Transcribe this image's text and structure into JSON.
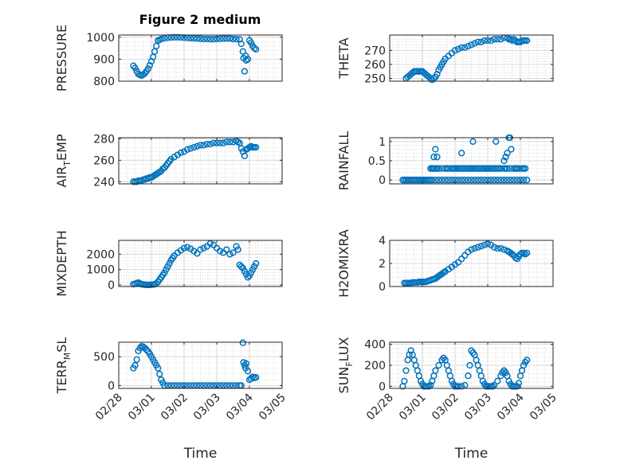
{
  "title": "Figure 2 medium",
  "marker_color": "#0072BD",
  "chart_data": [
    {
      "type": "scatter",
      "ylabel": "PRESSURE",
      "ylim": [
        800,
        1010
      ],
      "yticks": [
        800,
        900,
        1000
      ],
      "xlim": [
        "02/28",
        "03/05"
      ],
      "xticks": [
        "02/28",
        "03/01",
        "03/02",
        "03/03",
        "03/04",
        "03/05"
      ],
      "xtick_labels_visible": false,
      "x": [
        0.45,
        0.5,
        0.55,
        0.6,
        0.65,
        0.7,
        0.75,
        0.8,
        0.85,
        0.9,
        0.95,
        1.0,
        1.05,
        1.1,
        1.15,
        1.2,
        1.25,
        1.3,
        1.4,
        1.5,
        1.6,
        1.7,
        1.8,
        1.9,
        2.0,
        2.1,
        2.2,
        2.3,
        2.4,
        2.5,
        2.6,
        2.7,
        2.8,
        2.9,
        3.0,
        3.1,
        3.2,
        3.3,
        3.4,
        3.5,
        3.6,
        3.7,
        3.75,
        3.8,
        3.82,
        3.85,
        3.88,
        3.9,
        3.95,
        4.0,
        4.05,
        4.1,
        4.15,
        4.2
      ],
      "y": [
        870,
        860,
        845,
        833,
        828,
        826,
        830,
        836,
        845,
        857,
        872,
        890,
        910,
        935,
        960,
        985,
        988,
        992,
        995,
        998,
        999,
        1000,
        1000,
        999,
        998,
        997,
        996,
        995,
        994,
        993,
        992,
        992,
        991,
        991,
        992,
        993,
        994,
        994,
        994,
        992,
        991,
        990,
        970,
        935,
        905,
        845,
        915,
        895,
        900,
        985,
        975,
        960,
        950,
        945
      ]
    },
    {
      "type": "scatter",
      "ylabel": "THETA",
      "ylim": [
        248,
        281
      ],
      "yticks": [
        250,
        260,
        270
      ],
      "xlim": [
        "02/28",
        "03/05"
      ],
      "xticks": [
        "02/28",
        "03/01",
        "03/02",
        "03/03",
        "03/04",
        "03/05"
      ],
      "xtick_labels_visible": false,
      "x": [
        0.5,
        0.55,
        0.6,
        0.65,
        0.7,
        0.75,
        0.8,
        0.85,
        0.9,
        0.95,
        1.0,
        1.05,
        1.1,
        1.15,
        1.2,
        1.25,
        1.3,
        1.35,
        1.4,
        1.45,
        1.5,
        1.55,
        1.6,
        1.65,
        1.7,
        1.8,
        1.9,
        2.0,
        2.1,
        2.2,
        2.3,
        2.4,
        2.5,
        2.6,
        2.7,
        2.8,
        2.9,
        3.0,
        3.1,
        3.2,
        3.3,
        3.4,
        3.5,
        3.6,
        3.65,
        3.7,
        3.75,
        3.8,
        3.85,
        3.9,
        3.95,
        4.0,
        4.05,
        4.1,
        4.15,
        4.2
      ],
      "y": [
        250,
        251,
        252,
        253,
        254,
        255,
        255,
        255,
        255,
        255,
        255,
        254,
        253,
        252,
        251,
        250,
        249,
        250,
        251,
        253,
        256,
        258,
        260,
        262,
        264,
        266,
        268,
        270,
        271,
        272,
        272,
        273,
        274,
        275,
        276,
        276,
        277,
        277,
        277,
        278,
        278,
        278,
        279,
        279,
        278,
        278,
        277,
        278,
        277,
        276,
        276,
        276,
        277,
        277,
        277,
        277
      ]
    },
    {
      "type": "scatter",
      "ylabel": "AIR_TEMP",
      "ylabel_display": [
        "AIR",
        "T",
        "EMP"
      ],
      "ylim": [
        238,
        281
      ],
      "yticks": [
        240,
        260,
        280
      ],
      "xlim": [
        "02/28",
        "03/05"
      ],
      "xticks": [
        "02/28",
        "03/01",
        "03/02",
        "03/03",
        "03/04",
        "03/05"
      ],
      "xtick_labels_visible": false,
      "x": [
        0.45,
        0.5,
        0.55,
        0.6,
        0.65,
        0.7,
        0.75,
        0.8,
        0.85,
        0.9,
        0.95,
        1.0,
        1.05,
        1.1,
        1.15,
        1.2,
        1.25,
        1.3,
        1.35,
        1.4,
        1.45,
        1.5,
        1.55,
        1.6,
        1.7,
        1.8,
        1.9,
        2.0,
        2.1,
        2.2,
        2.3,
        2.4,
        2.5,
        2.6,
        2.7,
        2.8,
        2.9,
        3.0,
        3.1,
        3.2,
        3.3,
        3.4,
        3.5,
        3.6,
        3.65,
        3.7,
        3.75,
        3.8,
        3.85,
        3.9,
        3.95,
        4.0,
        4.05,
        4.1,
        4.15,
        4.2
      ],
      "y": [
        240,
        240,
        240,
        241,
        241,
        241,
        242,
        242,
        243,
        243,
        244,
        244,
        245,
        246,
        247,
        248,
        249,
        250,
        252,
        253,
        255,
        257,
        259,
        261,
        263,
        265,
        267,
        268,
        270,
        271,
        272,
        273,
        274,
        274,
        275,
        275,
        276,
        276,
        276,
        276,
        277,
        277,
        277,
        278,
        277,
        276,
        271,
        268,
        264,
        270,
        271,
        272,
        273,
        272,
        272,
        272
      ]
    },
    {
      "type": "scatter",
      "ylabel": "RAINFALL",
      "ylim": [
        -0.1,
        1.1
      ],
      "yticks": [
        0,
        0.5,
        1
      ],
      "xlim": [
        "02/28",
        "03/05"
      ],
      "xticks": [
        "02/28",
        "03/01",
        "03/02",
        "03/03",
        "03/04",
        "03/05"
      ],
      "xtick_labels_visible": false,
      "x": [
        0.4,
        0.45,
        0.5,
        0.55,
        0.6,
        0.65,
        0.7,
        0.75,
        0.8,
        0.85,
        0.9,
        0.95,
        1.0,
        1.05,
        1.1,
        1.15,
        1.2,
        1.25,
        1.3,
        1.4,
        1.5,
        1.6,
        1.7,
        1.8,
        1.9,
        2.0,
        2.1,
        2.2,
        2.3,
        2.4,
        2.5,
        2.6,
        2.7,
        2.8,
        2.9,
        3.0,
        3.1,
        3.2,
        3.3,
        3.4,
        3.5,
        3.6,
        3.7,
        3.8,
        3.9,
        4.0,
        4.1,
        4.2,
        1.25,
        1.3,
        1.32,
        1.35,
        1.4,
        1.45,
        1.5,
        1.6,
        1.7,
        1.75,
        1.8,
        1.9,
        1.95,
        2.0,
        2.05,
        2.1,
        2.15,
        2.2,
        2.25,
        2.3,
        2.35,
        2.4,
        2.45,
        2.5,
        2.55,
        2.6,
        2.65,
        2.7,
        2.75,
        2.8,
        2.85,
        2.9,
        2.95,
        3.0,
        3.05,
        3.1,
        3.15,
        3.2,
        3.25,
        3.3,
        3.35,
        3.4,
        3.5,
        3.55,
        3.6,
        3.7,
        3.8,
        3.85,
        3.88,
        3.9,
        3.95,
        4.05,
        4.1,
        4.15,
        1.35,
        1.4,
        1.45,
        1.9,
        2.2,
        2.55,
        3.25,
        3.5,
        3.55,
        3.6,
        3.65,
        3.68,
        3.72
      ],
      "y": [
        0,
        0,
        0,
        0,
        0,
        0,
        0,
        0,
        0,
        0,
        0,
        0,
        0,
        0,
        0,
        0,
        0,
        0,
        0,
        0,
        0,
        0,
        0,
        0,
        0,
        0,
        0,
        0,
        0,
        0,
        0,
        0,
        0,
        0,
        0,
        0,
        0,
        0,
        0,
        0,
        0,
        0,
        0,
        0,
        0,
        0,
        0,
        0,
        0.3,
        0.3,
        0.3,
        0.3,
        0.3,
        0.3,
        0.3,
        0.3,
        0.3,
        0.3,
        0.3,
        0.3,
        0.3,
        0.3,
        0.3,
        0.3,
        0.3,
        0.3,
        0.3,
        0.3,
        0.3,
        0.3,
        0.3,
        0.3,
        0.3,
        0.3,
        0.3,
        0.3,
        0.3,
        0.3,
        0.3,
        0.3,
        0.3,
        0.3,
        0.3,
        0.3,
        0.3,
        0.3,
        0.3,
        0.3,
        0.3,
        0.3,
        0.3,
        0.3,
        0.3,
        0.3,
        0.3,
        0.3,
        0.3,
        0.3,
        0.3,
        0.3,
        0.3,
        0.3,
        0.6,
        0.8,
        0.6,
        0.3,
        0.7,
        1.0,
        1.0,
        0.5,
        0.6,
        0.7,
        1.1,
        1.1,
        0.8
      ]
    },
    {
      "type": "scatter",
      "ylabel": "MIXDEPTH",
      "ylim": [
        -100,
        2900
      ],
      "yticks": [
        0,
        1000,
        2000
      ],
      "xlim": [
        "02/28",
        "03/05"
      ],
      "xticks": [
        "02/28",
        "03/01",
        "03/02",
        "03/03",
        "03/04",
        "03/05"
      ],
      "xtick_labels_visible": false,
      "x": [
        0.45,
        0.5,
        0.55,
        0.6,
        0.65,
        0.7,
        0.75,
        0.8,
        0.85,
        0.9,
        0.95,
        1.0,
        1.05,
        1.1,
        1.15,
        1.2,
        1.25,
        1.3,
        1.35,
        1.4,
        1.45,
        1.5,
        1.55,
        1.6,
        1.65,
        1.7,
        1.8,
        1.9,
        2.0,
        2.1,
        2.2,
        2.3,
        2.4,
        2.5,
        2.6,
        2.7,
        2.8,
        2.9,
        3.0,
        3.1,
        3.2,
        3.3,
        3.4,
        3.5,
        3.6,
        3.65,
        3.7,
        3.75,
        3.8,
        3.85,
        3.9,
        3.95,
        4.0,
        4.05,
        4.1,
        4.15,
        4.2
      ],
      "y": [
        50,
        80,
        120,
        150,
        100,
        50,
        30,
        20,
        10,
        10,
        10,
        20,
        30,
        50,
        100,
        200,
        350,
        500,
        650,
        800,
        1000,
        1200,
        1400,
        1600,
        1750,
        1900,
        2100,
        2250,
        2400,
        2450,
        2350,
        2200,
        2050,
        2300,
        2400,
        2500,
        2700,
        2600,
        2400,
        2200,
        2100,
        2300,
        2000,
        2100,
        2500,
        2300,
        1300,
        1200,
        1100,
        900,
        700,
        500,
        600,
        800,
        1000,
        1200,
        1400
      ]
    },
    {
      "type": "scatter",
      "ylabel": "H2OMIXRA",
      "ylim": [
        0,
        4
      ],
      "yticks": [
        0,
        2,
        4
      ],
      "xlim": [
        "02/28",
        "03/05"
      ],
      "xticks": [
        "02/28",
        "03/01",
        "03/02",
        "03/03",
        "03/04",
        "03/05"
      ],
      "xtick_labels_visible": false,
      "x": [
        0.45,
        0.5,
        0.55,
        0.6,
        0.65,
        0.7,
        0.75,
        0.8,
        0.85,
        0.9,
        0.95,
        1.0,
        1.05,
        1.1,
        1.15,
        1.2,
        1.25,
        1.3,
        1.35,
        1.4,
        1.45,
        1.5,
        1.55,
        1.6,
        1.65,
        1.7,
        1.8,
        1.9,
        2.0,
        2.1,
        2.2,
        2.3,
        2.4,
        2.5,
        2.6,
        2.7,
        2.8,
        2.9,
        3.0,
        3.1,
        3.2,
        3.3,
        3.4,
        3.5,
        3.6,
        3.65,
        3.7,
        3.75,
        3.8,
        3.85,
        3.9,
        3.95,
        4.0,
        4.05,
        4.1,
        4.15,
        4.2
      ],
      "y": [
        0.3,
        0.3,
        0.3,
        0.3,
        0.3,
        0.35,
        0.35,
        0.35,
        0.35,
        0.4,
        0.4,
        0.4,
        0.4,
        0.4,
        0.45,
        0.5,
        0.55,
        0.6,
        0.65,
        0.7,
        0.8,
        0.9,
        1.0,
        1.1,
        1.2,
        1.3,
        1.5,
        1.7,
        1.9,
        2.1,
        2.4,
        2.7,
        3.0,
        3.2,
        3.3,
        3.4,
        3.5,
        3.6,
        3.7,
        3.6,
        3.4,
        3.3,
        3.3,
        3.2,
        3.1,
        3.0,
        2.9,
        2.8,
        2.7,
        2.5,
        2.4,
        2.6,
        2.8,
        2.9,
        2.9,
        2.8,
        2.9
      ]
    },
    {
      "type": "scatter",
      "ylabel": "TERR_MSL",
      "ylabel_display": [
        "TERR",
        "M",
        "SL"
      ],
      "ylim": [
        -50,
        750
      ],
      "yticks": [
        0,
        500
      ],
      "xlim": [
        "02/28",
        "03/05"
      ],
      "xticks": [
        "02/28",
        "03/01",
        "03/02",
        "03/03",
        "03/04",
        "03/05"
      ],
      "xtick_labels_visible": true,
      "xlabel": "Time",
      "x": [
        0.45,
        0.5,
        0.55,
        0.6,
        0.65,
        0.7,
        0.75,
        0.8,
        0.85,
        0.9,
        0.95,
        1.0,
        1.05,
        1.1,
        1.15,
        1.2,
        1.25,
        1.3,
        1.35,
        1.4,
        1.5,
        1.6,
        1.7,
        1.8,
        1.9,
        2.0,
        2.1,
        2.2,
        2.3,
        2.4,
        2.5,
        2.6,
        2.7,
        2.8,
        2.9,
        3.0,
        3.1,
        3.2,
        3.3,
        3.4,
        3.5,
        3.6,
        3.7,
        3.75,
        3.8,
        3.82,
        3.85,
        3.88,
        3.9,
        3.95,
        4.0,
        4.05,
        4.1,
        4.15,
        4.2
      ],
      "y": [
        300,
        350,
        450,
        600,
        650,
        680,
        670,
        650,
        620,
        590,
        550,
        500,
        450,
        400,
        350,
        300,
        200,
        100,
        50,
        0,
        0,
        0,
        0,
        0,
        0,
        0,
        0,
        0,
        0,
        0,
        0,
        0,
        0,
        0,
        0,
        0,
        0,
        0,
        0,
        0,
        0,
        0,
        0,
        0,
        740,
        400,
        350,
        300,
        380,
        250,
        100,
        120,
        150,
        130,
        140
      ]
    },
    {
      "type": "scatter",
      "ylabel": "SUN_FLUX",
      "ylabel_display": [
        "SUN",
        "F",
        "LUX"
      ],
      "ylim": [
        -20,
        420
      ],
      "yticks": [
        0,
        200,
        400
      ],
      "xlim": [
        "02/28",
        "03/05"
      ],
      "xticks": [
        "02/28",
        "03/01",
        "03/02",
        "03/03",
        "03/04",
        "03/05"
      ],
      "xtick_labels_visible": true,
      "xlabel": "Time",
      "x": [
        0.4,
        0.45,
        0.5,
        0.55,
        0.6,
        0.65,
        0.7,
        0.75,
        0.8,
        0.85,
        0.9,
        0.95,
        1.0,
        1.05,
        1.1,
        1.15,
        1.2,
        1.25,
        1.3,
        1.35,
        1.4,
        1.5,
        1.6,
        1.65,
        1.7,
        1.75,
        1.8,
        1.85,
        1.9,
        1.95,
        2.0,
        2.05,
        2.1,
        2.2,
        2.3,
        2.4,
        2.45,
        2.5,
        2.55,
        2.6,
        2.65,
        2.7,
        2.75,
        2.8,
        2.85,
        2.9,
        2.95,
        3.0,
        3.05,
        3.1,
        3.15,
        3.2,
        3.3,
        3.4,
        3.45,
        3.5,
        3.55,
        3.6,
        3.65,
        3.7,
        3.75,
        3.8,
        3.85,
        3.9,
        3.95,
        4.0,
        4.05,
        4.1,
        4.15,
        4.2
      ],
      "y": [
        0,
        50,
        150,
        250,
        300,
        340,
        300,
        250,
        200,
        150,
        100,
        50,
        20,
        0,
        0,
        0,
        0,
        10,
        50,
        100,
        150,
        200,
        250,
        270,
        250,
        200,
        150,
        100,
        50,
        20,
        0,
        0,
        0,
        0,
        10,
        100,
        200,
        340,
        320,
        300,
        250,
        200,
        150,
        100,
        50,
        20,
        0,
        0,
        0,
        0,
        0,
        10,
        50,
        100,
        130,
        150,
        130,
        100,
        50,
        20,
        0,
        0,
        0,
        0,
        30,
        100,
        150,
        200,
        230,
        250
      ]
    }
  ]
}
